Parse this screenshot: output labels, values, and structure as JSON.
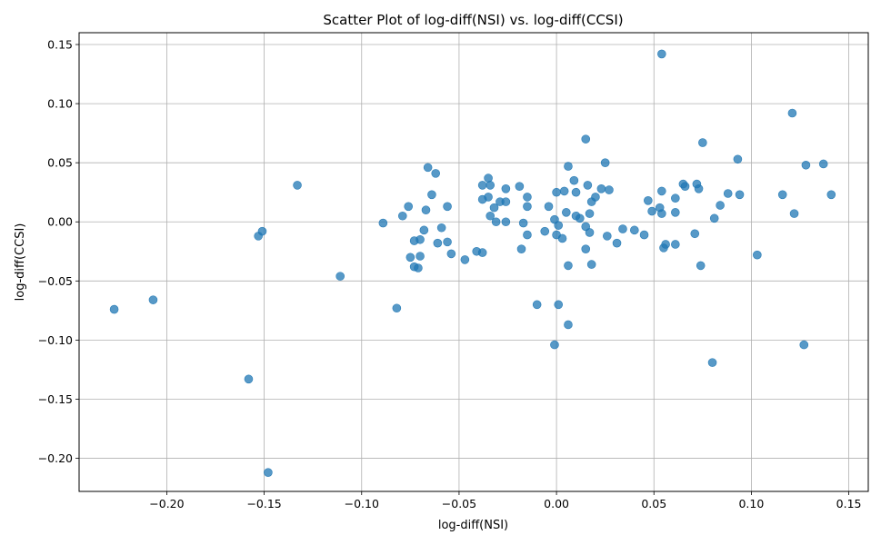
{
  "chart_data": {
    "type": "scatter",
    "title": "Scatter Plot of log-diff(NSI) vs. log-diff(CCSI)",
    "xlabel": "log-diff(NSI)",
    "ylabel": "log-diff(CCSI)",
    "xlim": [
      -0.245,
      0.16
    ],
    "ylim": [
      -0.228,
      0.16
    ],
    "xticks": [
      -0.2,
      -0.15,
      -0.1,
      -0.05,
      0.0,
      0.05,
      0.1,
      0.15
    ],
    "xtick_labels": [
      "−0.20",
      "−0.15",
      "−0.10",
      "−0.05",
      "0.00",
      "0.05",
      "0.10",
      "0.15"
    ],
    "yticks": [
      -0.2,
      -0.15,
      -0.1,
      -0.05,
      0.0,
      0.05,
      0.1,
      0.15
    ],
    "ytick_labels": [
      "−0.20",
      "−0.15",
      "−0.10",
      "−0.05",
      "0.00",
      "0.05",
      "0.10",
      "0.15"
    ],
    "grid": true,
    "marker_color": "#1f77b4",
    "marker_alpha": 0.75,
    "points": [
      [
        -0.227,
        -0.074
      ],
      [
        -0.207,
        -0.066
      ],
      [
        -0.158,
        -0.133
      ],
      [
        -0.153,
        -0.012
      ],
      [
        -0.151,
        -0.008
      ],
      [
        -0.148,
        -0.212
      ],
      [
        -0.133,
        0.031
      ],
      [
        -0.111,
        -0.046
      ],
      [
        -0.089,
        -0.001
      ],
      [
        -0.082,
        -0.073
      ],
      [
        -0.079,
        0.005
      ],
      [
        -0.076,
        0.013
      ],
      [
        -0.075,
        -0.03
      ],
      [
        -0.073,
        -0.016
      ],
      [
        -0.073,
        -0.038
      ],
      [
        -0.071,
        -0.039
      ],
      [
        -0.07,
        -0.029
      ],
      [
        -0.07,
        -0.015
      ],
      [
        -0.068,
        -0.007
      ],
      [
        -0.067,
        0.01
      ],
      [
        -0.066,
        0.046
      ],
      [
        -0.064,
        0.023
      ],
      [
        -0.062,
        0.041
      ],
      [
        -0.061,
        -0.018
      ],
      [
        -0.059,
        -0.005
      ],
      [
        -0.056,
        -0.017
      ],
      [
        -0.056,
        0.013
      ],
      [
        -0.054,
        -0.027
      ],
      [
        -0.047,
        -0.032
      ],
      [
        -0.041,
        -0.025
      ],
      [
        -0.038,
        -0.026
      ],
      [
        -0.038,
        0.031
      ],
      [
        -0.038,
        0.019
      ],
      [
        -0.035,
        0.037
      ],
      [
        -0.035,
        0.021
      ],
      [
        -0.034,
        0.031
      ],
      [
        -0.034,
        0.005
      ],
      [
        -0.032,
        0.012
      ],
      [
        -0.031,
        0.0
      ],
      [
        -0.029,
        0.017
      ],
      [
        -0.026,
        0.028
      ],
      [
        -0.026,
        0.017
      ],
      [
        -0.026,
        0.0
      ],
      [
        -0.019,
        0.03
      ],
      [
        -0.018,
        -0.023
      ],
      [
        -0.017,
        -0.001
      ],
      [
        -0.015,
        0.021
      ],
      [
        -0.015,
        0.013
      ],
      [
        -0.015,
        -0.011
      ],
      [
        -0.01,
        -0.07
      ],
      [
        -0.006,
        -0.008
      ],
      [
        -0.004,
        0.013
      ],
      [
        -0.001,
        0.002
      ],
      [
        -0.001,
        -0.104
      ],
      [
        0.0,
        0.025
      ],
      [
        0.0,
        -0.011
      ],
      [
        0.001,
        -0.003
      ],
      [
        0.001,
        -0.07
      ],
      [
        0.003,
        -0.014
      ],
      [
        0.004,
        0.026
      ],
      [
        0.005,
        0.008
      ],
      [
        0.006,
        0.047
      ],
      [
        0.006,
        -0.037
      ],
      [
        0.006,
        -0.087
      ],
      [
        0.009,
        0.035
      ],
      [
        0.01,
        0.025
      ],
      [
        0.01,
        0.005
      ],
      [
        0.012,
        0.003
      ],
      [
        0.015,
        0.07
      ],
      [
        0.015,
        -0.023
      ],
      [
        0.015,
        -0.004
      ],
      [
        0.016,
        0.031
      ],
      [
        0.017,
        0.007
      ],
      [
        0.017,
        -0.009
      ],
      [
        0.018,
        0.017
      ],
      [
        0.018,
        -0.036
      ],
      [
        0.02,
        0.021
      ],
      [
        0.023,
        0.028
      ],
      [
        0.025,
        0.05
      ],
      [
        0.026,
        -0.012
      ],
      [
        0.027,
        0.027
      ],
      [
        0.031,
        -0.018
      ],
      [
        0.034,
        -0.006
      ],
      [
        0.04,
        -0.007
      ],
      [
        0.045,
        -0.011
      ],
      [
        0.047,
        0.018
      ],
      [
        0.049,
        0.009
      ],
      [
        0.053,
        0.012
      ],
      [
        0.054,
        0.007
      ],
      [
        0.054,
        0.026
      ],
      [
        0.054,
        0.142
      ],
      [
        0.055,
        -0.022
      ],
      [
        0.056,
        -0.019
      ],
      [
        0.061,
        0.02
      ],
      [
        0.061,
        0.008
      ],
      [
        0.061,
        -0.019
      ],
      [
        0.065,
        0.032
      ],
      [
        0.066,
        0.03
      ],
      [
        0.071,
        -0.01
      ],
      [
        0.072,
        0.032
      ],
      [
        0.073,
        0.028
      ],
      [
        0.074,
        -0.037
      ],
      [
        0.075,
        0.067
      ],
      [
        0.08,
        -0.119
      ],
      [
        0.081,
        0.003
      ],
      [
        0.084,
        0.014
      ],
      [
        0.088,
        0.024
      ],
      [
        0.093,
        0.053
      ],
      [
        0.094,
        0.023
      ],
      [
        0.103,
        -0.028
      ],
      [
        0.116,
        0.023
      ],
      [
        0.121,
        0.092
      ],
      [
        0.122,
        0.007
      ],
      [
        0.127,
        -0.104
      ],
      [
        0.128,
        0.048
      ],
      [
        0.137,
        0.049
      ],
      [
        0.141,
        0.023
      ]
    ]
  }
}
